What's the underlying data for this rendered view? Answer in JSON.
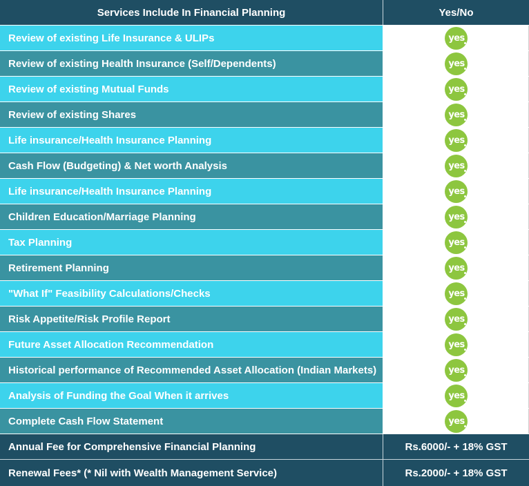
{
  "header": {
    "services_label": "Services Include In Financial Planning",
    "yesno_label": "Yes/No"
  },
  "rows": [
    {
      "service": "Review of existing Life Insurance & ULIPs",
      "answer": "yes"
    },
    {
      "service": "Review of existing Health Insurance (Self/Dependents)",
      "answer": "yes"
    },
    {
      "service": "Review of existing Mutual Funds",
      "answer": "yes"
    },
    {
      "service": "Review of existing Shares",
      "answer": "yes"
    },
    {
      "service": "Life insurance/Health Insurance Planning",
      "answer": "yes"
    },
    {
      "service": "Cash Flow (Budgeting) & Net worth Analysis",
      "answer": "yes"
    },
    {
      "service": "Life insurance/Health Insurance Planning",
      "answer": "yes"
    },
    {
      "service": "Children Education/Marriage Planning",
      "answer": "yes"
    },
    {
      "service": "Tax Planning",
      "answer": "yes"
    },
    {
      "service": "Retirement Planning",
      "answer": "yes"
    },
    {
      "service": "\"What If\" Feasibility Calculations/Checks",
      "answer": "yes"
    },
    {
      "service": "Risk Appetite/Risk Profile Report",
      "answer": "yes"
    },
    {
      "service": "Future Asset Allocation Recommendation",
      "answer": "yes"
    },
    {
      "service": "Historical performance of Recommended Asset Allocation (Indian Markets)",
      "answer": "yes"
    },
    {
      "service": "Analysis of Funding the Goal When it arrives",
      "answer": "yes"
    },
    {
      "service": "Complete Cash Flow Statement",
      "answer": "yes"
    }
  ],
  "footer": [
    {
      "label": "Annual Fee for Comprehensive Financial Planning",
      "value": "Rs.6000/- + 18% GST"
    },
    {
      "label": "Renewal Fees* (* Nil with Wealth Management Service)",
      "value": "Rs.2000/- + 18% GST"
    }
  ],
  "colors": {
    "header_bg": "#1f4e63",
    "row_light": "#3dd3ec",
    "row_dark": "#3a93a1",
    "badge": "#8dc63f"
  }
}
